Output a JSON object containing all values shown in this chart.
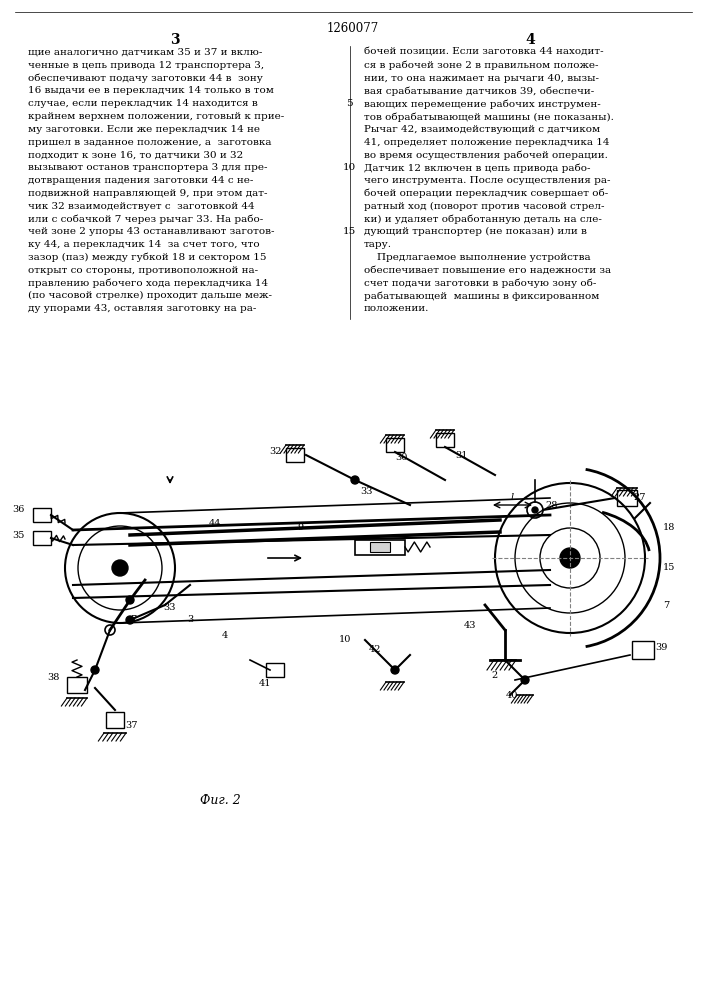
{
  "patent_number": "1260077",
  "col_left": "3",
  "col_right": "4",
  "text_left": [
    "щие аналогично датчикам 35 и 37 и вклю-",
    "ченные в цепь привода 12 транспортера 3,",
    "обеспечивают подачу заготовки 44 в  зону",
    "16 выдачи ее в перекладчик 14 только в том",
    "случае, если перекладчик 14 находится в",
    "крайнем верхнем положении, готовый к прие-",
    "му заготовки. Если же перекладчик 14 не",
    "пришел в заданное положение, а  заготовка",
    "подходит к зоне 16, то датчики 30 и 32",
    "вызывают останов транспортера 3 для пре-",
    "дотвращения падения заготовки 44 с не-",
    "подвижной направляющей 9, при этом дат-",
    "чик 32 взаимодействует с  заготовкой 44",
    "или с собачкой 7 через рычаг 33. На рабо-",
    "чей зоне 2 упоры 43 останавливают заготов-",
    "ку 44, а перекладчик 14  за счет того, что",
    "зазор (паз) между губкой 18 и сектором 15",
    "открыт со стороны, противоположной на-",
    "правлению рабочего хода перекладчика 14",
    "(по часовой стрелке) проходит дальше меж-",
    "ду упорами 43, оставляя заготовку на ра-"
  ],
  "text_right": [
    "бочей позиции. Если заготовка 44 находит-",
    "ся в рабочей зоне 2 в правильном положе-",
    "нии, то она нажимает на рычаги 40, вызы-",
    "вая срабатывание датчиков 39, обеспечи-",
    "вающих перемещение рабочих инструмен-",
    "тов обрабатывающей машины (не показаны).",
    "Рычаг 42, взаимодействующий с датчиком",
    "41, определяет положение перекладчика 14",
    "во время осуществления рабочей операции.",
    "Датчик 12 включен в цепь привода рабо-",
    "чего инструмента. После осуществления ра-",
    "бочей операции перекладчик совершает об-",
    "ратный ход (поворот против часовой стрел-",
    "ки) и удаляет обработанную деталь на сле-",
    "дующий транспортер (не показан) или в",
    "тару.",
    "    Предлагаемое выполнение устройства",
    "обеспечивает повышение его надежности за",
    "счет подачи заготовки в рабочую зону об-",
    "рабатывающей  машины в фиксированном",
    "положении."
  ],
  "fig_caption": "Фиг. 2",
  "bg_color": "#ffffff",
  "text_color": "#000000"
}
